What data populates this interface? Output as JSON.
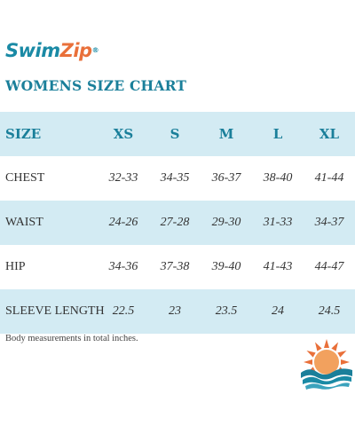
{
  "brand": {
    "name_part1": "Swim",
    "name_part2": "Zip",
    "registered": "®",
    "colors": {
      "primary": "#1a8aa5",
      "accent": "#e9703a"
    }
  },
  "title": "WOMENS SIZE CHART",
  "table": {
    "header": {
      "label": "SIZE",
      "sizes": [
        "XS",
        "S",
        "M",
        "L",
        "XL"
      ]
    },
    "rows": [
      {
        "label": "CHEST",
        "values": [
          "32-33",
          "34-35",
          "36-37",
          "38-40",
          "41-44"
        ]
      },
      {
        "label": "WAIST",
        "values": [
          "24-26",
          "27-28",
          "29-30",
          "31-33",
          "34-37"
        ]
      },
      {
        "label": "HIP",
        "values": [
          "34-36",
          "37-38",
          "39-40",
          "41-43",
          "44-47"
        ]
      },
      {
        "label": "SLEEVE LENGTH",
        "values": [
          "22.5",
          "23",
          "23.5",
          "24",
          "24.5"
        ]
      }
    ],
    "colors": {
      "shaded_row": "#d3ebf3",
      "header_text": "#1a7f9a"
    }
  },
  "footnote": "Body measurements in total inches.",
  "logo": {
    "icon": "sun-waves-icon",
    "sun_color": "#f2a15e",
    "ray_color": "#e9703a",
    "wave_color": "#1a7f9a"
  }
}
